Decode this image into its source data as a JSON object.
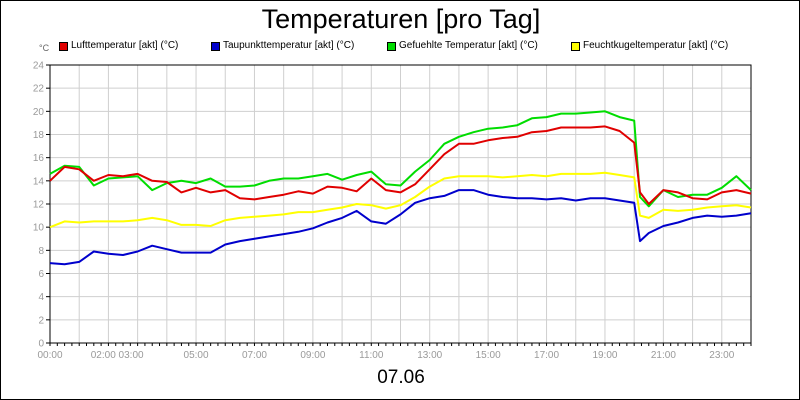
{
  "chart_data": {
    "type": "line",
    "title": "Temperaturen [pro Tag]",
    "xlabel": "07.06",
    "y_unit": "°C",
    "ylim": [
      0,
      24
    ],
    "y_ticks": [
      0,
      2,
      4,
      6,
      8,
      10,
      12,
      14,
      16,
      18,
      20,
      22,
      24
    ],
    "xlim": [
      0,
      24
    ],
    "x_tick_labels": [
      {
        "x": 0,
        "label": "00:00"
      },
      {
        "x": 2.3,
        "label": "02:00 03:00"
      },
      {
        "x": 5,
        "label": "05:00"
      },
      {
        "x": 7,
        "label": "07:00"
      },
      {
        "x": 9,
        "label": "09:00"
      },
      {
        "x": 11,
        "label": "11:00"
      },
      {
        "x": 13,
        "label": "13:00"
      },
      {
        "x": 15,
        "label": "15:00"
      },
      {
        "x": 17,
        "label": "17:00"
      },
      {
        "x": 19,
        "label": "19:00"
      },
      {
        "x": 21,
        "label": "21:00"
      },
      {
        "x": 23,
        "label": "23:00"
      }
    ],
    "grid": true,
    "legend_position": "top",
    "series": [
      {
        "name": "Lufttemperatur [akt] (°C)",
        "color": "#e00000",
        "points": [
          [
            0,
            14.0
          ],
          [
            0.5,
            15.2
          ],
          [
            1,
            15.0
          ],
          [
            1.5,
            14.0
          ],
          [
            2,
            14.5
          ],
          [
            2.5,
            14.4
          ],
          [
            3,
            14.6
          ],
          [
            3.5,
            14.0
          ],
          [
            4,
            13.9
          ],
          [
            4.5,
            13.0
          ],
          [
            5,
            13.4
          ],
          [
            5.5,
            13.0
          ],
          [
            6,
            13.2
          ],
          [
            6.5,
            12.5
          ],
          [
            7,
            12.4
          ],
          [
            7.5,
            12.6
          ],
          [
            8,
            12.8
          ],
          [
            8.5,
            13.1
          ],
          [
            9,
            12.9
          ],
          [
            9.5,
            13.5
          ],
          [
            10,
            13.4
          ],
          [
            10.5,
            13.1
          ],
          [
            11,
            14.2
          ],
          [
            11.5,
            13.2
          ],
          [
            12,
            13.0
          ],
          [
            12.5,
            13.7
          ],
          [
            13,
            15.0
          ],
          [
            13.5,
            16.3
          ],
          [
            14,
            17.2
          ],
          [
            14.5,
            17.2
          ],
          [
            15,
            17.5
          ],
          [
            15.5,
            17.7
          ],
          [
            16,
            17.8
          ],
          [
            16.5,
            18.2
          ],
          [
            17,
            18.3
          ],
          [
            17.5,
            18.6
          ],
          [
            18,
            18.6
          ],
          [
            18.5,
            18.6
          ],
          [
            19,
            18.7
          ],
          [
            19.5,
            18.3
          ],
          [
            20,
            17.3
          ],
          [
            20.2,
            13.0
          ],
          [
            20.5,
            12.0
          ],
          [
            21,
            13.2
          ],
          [
            21.5,
            13.0
          ],
          [
            22,
            12.5
          ],
          [
            22.5,
            12.4
          ],
          [
            23,
            13.0
          ],
          [
            23.5,
            13.2
          ],
          [
            24,
            12.9
          ]
        ]
      },
      {
        "name": "Taupunkttemperatur [akt] (°C)",
        "color": "#0000cc",
        "points": [
          [
            0,
            6.9
          ],
          [
            0.5,
            6.8
          ],
          [
            1,
            7.0
          ],
          [
            1.5,
            7.9
          ],
          [
            2,
            7.7
          ],
          [
            2.5,
            7.6
          ],
          [
            3,
            7.9
          ],
          [
            3.5,
            8.4
          ],
          [
            4,
            8.1
          ],
          [
            4.5,
            7.8
          ],
          [
            5,
            7.8
          ],
          [
            5.5,
            7.8
          ],
          [
            6,
            8.5
          ],
          [
            6.5,
            8.8
          ],
          [
            7,
            9.0
          ],
          [
            7.5,
            9.2
          ],
          [
            8,
            9.4
          ],
          [
            8.5,
            9.6
          ],
          [
            9,
            9.9
          ],
          [
            9.5,
            10.4
          ],
          [
            10,
            10.8
          ],
          [
            10.5,
            11.4
          ],
          [
            11,
            10.5
          ],
          [
            11.5,
            10.3
          ],
          [
            12,
            11.1
          ],
          [
            12.5,
            12.1
          ],
          [
            13,
            12.5
          ],
          [
            13.5,
            12.7
          ],
          [
            14,
            13.2
          ],
          [
            14.5,
            13.2
          ],
          [
            15,
            12.8
          ],
          [
            15.5,
            12.6
          ],
          [
            16,
            12.5
          ],
          [
            16.5,
            12.5
          ],
          [
            17,
            12.4
          ],
          [
            17.5,
            12.5
          ],
          [
            18,
            12.3
          ],
          [
            18.5,
            12.5
          ],
          [
            19,
            12.5
          ],
          [
            19.5,
            12.3
          ],
          [
            20,
            12.1
          ],
          [
            20.2,
            8.8
          ],
          [
            20.5,
            9.5
          ],
          [
            21,
            10.1
          ],
          [
            21.5,
            10.4
          ],
          [
            22,
            10.8
          ],
          [
            22.5,
            11.0
          ],
          [
            23,
            10.9
          ],
          [
            23.5,
            11.0
          ],
          [
            24,
            11.2
          ]
        ]
      },
      {
        "name": "Gefuehlte Temperatur [akt] (°C)",
        "color": "#00dd00",
        "points": [
          [
            0,
            14.6
          ],
          [
            0.5,
            15.3
          ],
          [
            1,
            15.2
          ],
          [
            1.5,
            13.6
          ],
          [
            2,
            14.2
          ],
          [
            2.5,
            14.3
          ],
          [
            3,
            14.4
          ],
          [
            3.5,
            13.2
          ],
          [
            4,
            13.8
          ],
          [
            4.5,
            14.0
          ],
          [
            5,
            13.8
          ],
          [
            5.5,
            14.2
          ],
          [
            6,
            13.5
          ],
          [
            6.5,
            13.5
          ],
          [
            7,
            13.6
          ],
          [
            7.5,
            14.0
          ],
          [
            8,
            14.2
          ],
          [
            8.5,
            14.2
          ],
          [
            9,
            14.4
          ],
          [
            9.5,
            14.6
          ],
          [
            10,
            14.1
          ],
          [
            10.5,
            14.5
          ],
          [
            11,
            14.8
          ],
          [
            11.5,
            13.7
          ],
          [
            12,
            13.6
          ],
          [
            12.5,
            14.8
          ],
          [
            13,
            15.8
          ],
          [
            13.5,
            17.2
          ],
          [
            14,
            17.8
          ],
          [
            14.5,
            18.2
          ],
          [
            15,
            18.5
          ],
          [
            15.5,
            18.6
          ],
          [
            16,
            18.8
          ],
          [
            16.5,
            19.4
          ],
          [
            17,
            19.5
          ],
          [
            17.5,
            19.8
          ],
          [
            18,
            19.8
          ],
          [
            18.5,
            19.9
          ],
          [
            19,
            20.0
          ],
          [
            19.5,
            19.5
          ],
          [
            20,
            19.2
          ],
          [
            20.2,
            12.6
          ],
          [
            20.5,
            11.8
          ],
          [
            21,
            13.2
          ],
          [
            21.5,
            12.6
          ],
          [
            22,
            12.8
          ],
          [
            22.5,
            12.8
          ],
          [
            23,
            13.4
          ],
          [
            23.5,
            14.4
          ],
          [
            24,
            13.2
          ]
        ]
      },
      {
        "name": "Feuchtkugeltemperatur [akt] (°C)",
        "color": "#ffff00",
        "points": [
          [
            0,
            10.0
          ],
          [
            0.5,
            10.5
          ],
          [
            1,
            10.4
          ],
          [
            1.5,
            10.5
          ],
          [
            2,
            10.5
          ],
          [
            2.5,
            10.5
          ],
          [
            3,
            10.6
          ],
          [
            3.5,
            10.8
          ],
          [
            4,
            10.6
          ],
          [
            4.5,
            10.2
          ],
          [
            5,
            10.2
          ],
          [
            5.5,
            10.1
          ],
          [
            6,
            10.6
          ],
          [
            6.5,
            10.8
          ],
          [
            7,
            10.9
          ],
          [
            7.5,
            11.0
          ],
          [
            8,
            11.1
          ],
          [
            8.5,
            11.3
          ],
          [
            9,
            11.3
          ],
          [
            9.5,
            11.5
          ],
          [
            10,
            11.7
          ],
          [
            10.5,
            12.0
          ],
          [
            11,
            11.9
          ],
          [
            11.5,
            11.6
          ],
          [
            12,
            11.9
          ],
          [
            12.5,
            12.6
          ],
          [
            13,
            13.5
          ],
          [
            13.5,
            14.2
          ],
          [
            14,
            14.4
          ],
          [
            14.5,
            14.4
          ],
          [
            15,
            14.4
          ],
          [
            15.5,
            14.3
          ],
          [
            16,
            14.4
          ],
          [
            16.5,
            14.5
          ],
          [
            17,
            14.4
          ],
          [
            17.5,
            14.6
          ],
          [
            18,
            14.6
          ],
          [
            18.5,
            14.6
          ],
          [
            19,
            14.7
          ],
          [
            19.5,
            14.5
          ],
          [
            20,
            14.3
          ],
          [
            20.2,
            11.0
          ],
          [
            20.5,
            10.8
          ],
          [
            21,
            11.5
          ],
          [
            21.5,
            11.4
          ],
          [
            22,
            11.5
          ],
          [
            22.5,
            11.7
          ],
          [
            23,
            11.8
          ],
          [
            23.5,
            11.9
          ],
          [
            24,
            11.7
          ]
        ]
      }
    ]
  }
}
